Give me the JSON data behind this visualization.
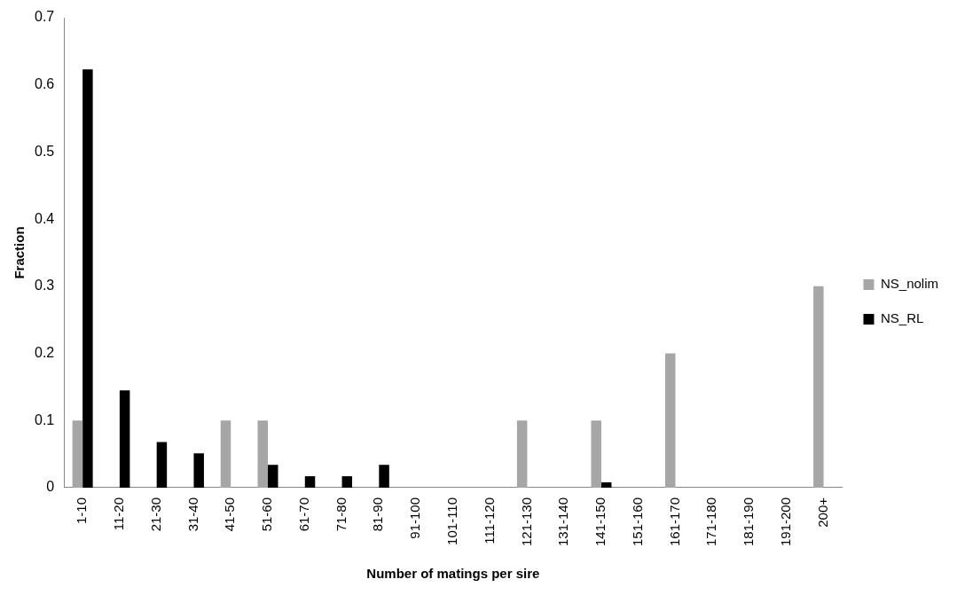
{
  "chart_data": {
    "type": "bar",
    "xlabel": "Number of matings per sire",
    "ylabel": "Fraction",
    "categories": [
      "1-10",
      "11-20",
      "21-30",
      "31-40",
      "41-50",
      "51-60",
      "61-70",
      "71-80",
      "81-90",
      "91-100",
      "101-110",
      "111-120",
      "121-130",
      "131-140",
      "141-150",
      "151-160",
      "161-170",
      "171-180",
      "181-190",
      "191-200",
      "200+"
    ],
    "series": [
      {
        "name": "NS_nolim",
        "color": "#a6a6a6",
        "values": [
          0.1,
          0,
          0,
          0,
          0.1,
          0.1,
          0,
          0,
          0,
          0,
          0,
          0,
          0.1,
          0,
          0.1,
          0,
          0.2,
          0,
          0,
          0,
          0.3
        ]
      },
      {
        "name": "NS_RL",
        "color": "#000000",
        "values": [
          0.623,
          0.145,
          0.068,
          0.051,
          0,
          0.034,
          0.017,
          0.017,
          0.034,
          0,
          0,
          0,
          0,
          0,
          0.008,
          0,
          0,
          0,
          0,
          0,
          0
        ]
      }
    ],
    "ylim": [
      0,
      0.7
    ],
    "yticks": [
      0,
      0.1,
      0.2,
      0.3,
      0.4,
      0.5,
      0.6,
      0.7
    ],
    "grid": false,
    "legend": "right"
  }
}
